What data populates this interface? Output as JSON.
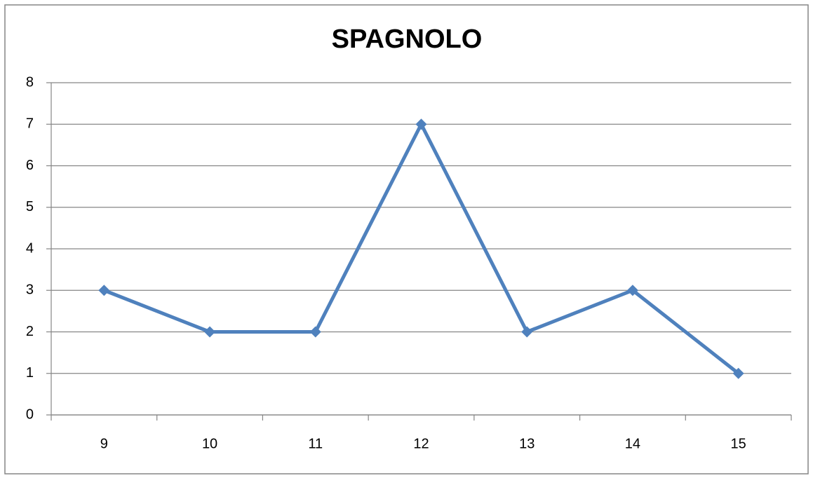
{
  "chart_data": {
    "type": "line",
    "title": "SPAGNOLO",
    "categories": [
      "9",
      "10",
      "11",
      "12",
      "13",
      "14",
      "15"
    ],
    "values": [
      3,
      2,
      2,
      7,
      2,
      3,
      1
    ],
    "color": "#4f81bd",
    "ylim": [
      0,
      8
    ],
    "yticks": [
      0,
      1,
      2,
      3,
      4,
      5,
      6,
      7,
      8
    ],
    "grid": true
  }
}
